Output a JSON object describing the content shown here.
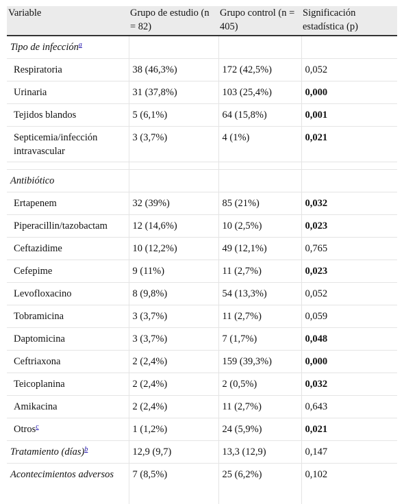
{
  "headers": {
    "variable": "Variable",
    "study": "Grupo de estudio (n = 82)",
    "control": "Grupo control (n = 405)",
    "sig": "Significación estadística (p)"
  },
  "sections": {
    "infection": {
      "label": "Tipo de infección",
      "note": "a"
    },
    "antibiotic": {
      "label": "Antibiótico"
    }
  },
  "infection_rows": [
    {
      "label": "Respiratoria",
      "study": "38 (46,3%)",
      "control": "172 (42,5%)",
      "p": "0,052"
    },
    {
      "label": "Urinaria",
      "study": "31 (37,8%)",
      "control": "103 (25,4%)",
      "p": "0,000"
    },
    {
      "label": "Tejidos blandos",
      "study": "5 (6,1%)",
      "control": "64 (15,8%)",
      "p": "0,001"
    },
    {
      "label": "Septicemia/infección intravascular",
      "study": "3 (3,7%)",
      "control": "4 (1%)",
      "p": "0,021"
    }
  ],
  "antibiotic_rows": [
    {
      "label": "Ertapenem",
      "study": "32 (39%)",
      "control": "85 (21%)",
      "p": "0,032"
    },
    {
      "label": "Piperacillin/tazobactam",
      "study": "12 (14,6%)",
      "control": "10 (2,5%)",
      "p": "0,023"
    },
    {
      "label": "Ceftazidime",
      "study": "10 (12,2%)",
      "control": "49 (12,1%)",
      "p": "0,765"
    },
    {
      "label": "Cefepime",
      "study": "9 (11%)",
      "control": "11 (2,7%)",
      "p": "0,023"
    },
    {
      "label": "Levofloxacino",
      "study": "8 (9,8%)",
      "control": "54 (13,3%)",
      "p": "0,052"
    },
    {
      "label": "Tobramicina",
      "study": "3 (3,7%)",
      "control": "11 (2,7%)",
      "p": "0,059"
    },
    {
      "label": "Daptomicina",
      "study": "3 (3,7%)",
      "control": "7 (1,7%)",
      "p": "0,048"
    },
    {
      "label": "Ceftriaxona",
      "study": "2 (2,4%)",
      "control": "159 (39,3%)",
      "p": "0,000"
    },
    {
      "label": "Teicoplanina",
      "study": "2 (2,4%)",
      "control": "2 (0,5%)",
      "p": "0,032"
    },
    {
      "label": "Amikacina",
      "study": "2 (2,4%)",
      "control": "11 (2,7%)",
      "p": "0,643"
    },
    {
      "label": "Otros",
      "note": "c",
      "study": "1 (1,2%)",
      "control": "24 (5,9%)",
      "p": "0,021"
    }
  ],
  "summary_rows": [
    {
      "label": "Tratamiento (días)",
      "note": "b",
      "study": "12,9 (9,7)",
      "control": "13,3 (12,9)",
      "p": "0,147"
    },
    {
      "label": "Acontecimientos adversos",
      "study": "7 (8,5%)",
      "control": "25 (6,2%)",
      "p": "0,102"
    }
  ]
}
